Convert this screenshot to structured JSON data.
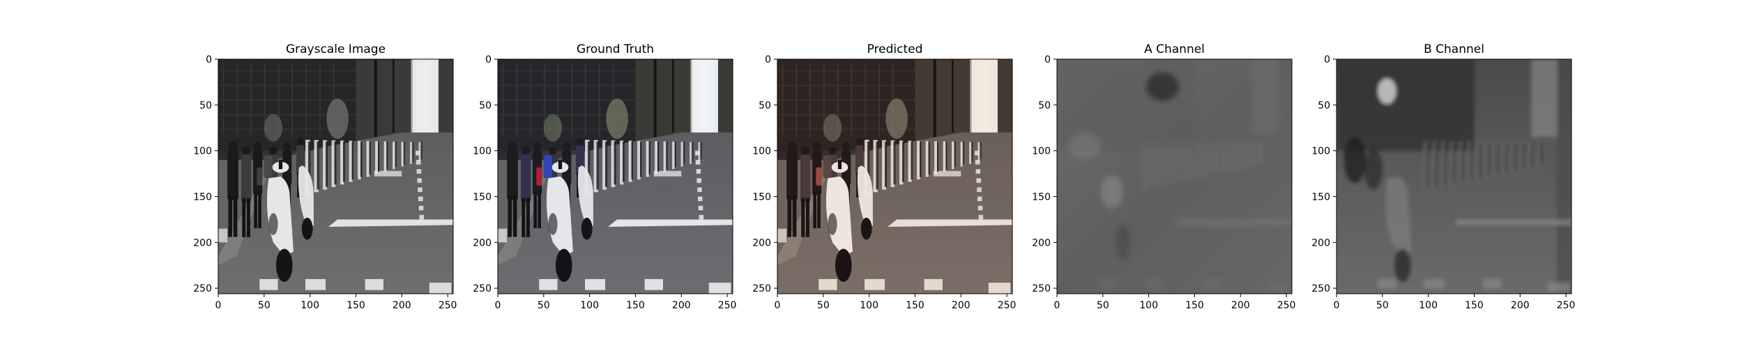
{
  "figure": {
    "background": "#ffffff",
    "panels": [
      {
        "name": "grayscale",
        "title": "Grayscale Image",
        "kind": "grayscale"
      },
      {
        "name": "ground-truth",
        "title": "Ground Truth",
        "kind": "color"
      },
      {
        "name": "predicted",
        "title": "Predicted",
        "kind": "color-warm"
      },
      {
        "name": "a-channel",
        "title": "A Channel",
        "kind": "a-channel"
      },
      {
        "name": "b-channel",
        "title": "B Channel",
        "kind": "b-channel"
      }
    ],
    "axes": {
      "x_ticks": [
        0,
        50,
        100,
        150,
        200,
        250
      ],
      "y_ticks": [
        0,
        50,
        100,
        150,
        200,
        250
      ],
      "xlim": [
        0,
        256
      ],
      "ylim": [
        256,
        0
      ]
    }
  }
}
